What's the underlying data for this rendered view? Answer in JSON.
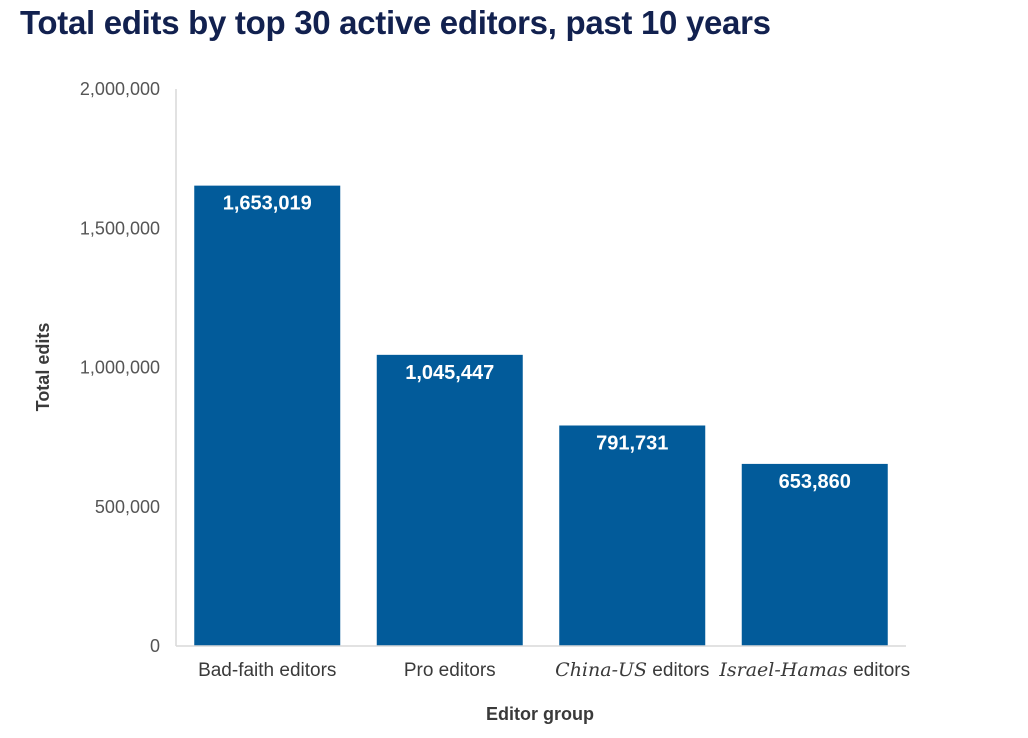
{
  "chart_data": {
    "type": "bar",
    "title": "Total edits by top 30 active editors, past 10 years",
    "xlabel": "Editor group",
    "ylabel": "Total edits",
    "ylim": [
      0,
      2000000
    ],
    "yticks": [
      {
        "value": 0,
        "label": "0"
      },
      {
        "value": 500000,
        "label": "500,000"
      },
      {
        "value": 1000000,
        "label": "1,000,000"
      },
      {
        "value": 1500000,
        "label": "1,500,000"
      },
      {
        "value": 2000000,
        "label": "2,000,000"
      }
    ],
    "categories": [
      {
        "label_italic": "",
        "label_rest": "Bad-faith editors"
      },
      {
        "label_italic": "",
        "label_rest": "Pro editors"
      },
      {
        "label_italic": "China-US",
        "label_rest": " editors"
      },
      {
        "label_italic": "Israel-Hamas",
        "label_rest": " editors"
      }
    ],
    "values": [
      1653019,
      1045447,
      791731,
      653860
    ],
    "data_labels": [
      "1,653,019",
      "1,045,447",
      "791,731",
      "653,860"
    ],
    "colors": {
      "bar": "#025b9a",
      "axis": "#d9d9d9",
      "title": "#12214f"
    }
  }
}
